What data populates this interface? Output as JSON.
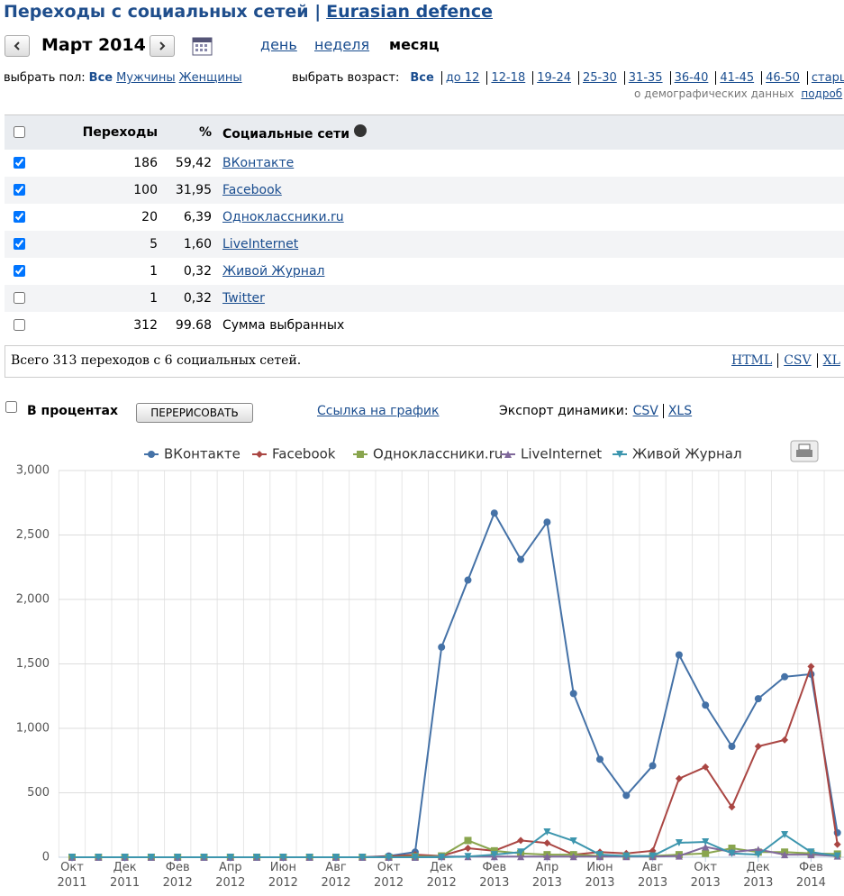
{
  "header": {
    "title": "Переходы с социальных сетей |",
    "site": "Eurasian defence"
  },
  "nav": {
    "period": "Март 2014",
    "modes": [
      "день",
      "неделя",
      "месяц"
    ],
    "active": 2
  },
  "filters": {
    "gender_label": "выбрать пол:",
    "genders": [
      "Все",
      "Мужчины",
      "Женщины"
    ],
    "age_label": "выбрать возраст:",
    "ages": [
      "Все",
      "до 12",
      "12-18",
      "19-24",
      "25-30",
      "31-35",
      "36-40",
      "41-45",
      "46-50",
      "старше"
    ],
    "demo_note": "о демографических данных",
    "demo_link": "подроб"
  },
  "table": {
    "headers": [
      "Переходы",
      "%",
      "Социальные сети"
    ],
    "rows": [
      {
        "checked": true,
        "visits": "186",
        "percent": "59,42",
        "name": "ВКонтакте",
        "link": true
      },
      {
        "checked": true,
        "visits": "100",
        "percent": "31,95",
        "name": "Facebook",
        "link": true
      },
      {
        "checked": true,
        "visits": "20",
        "percent": "6,39",
        "name": "Одноклассники.ru",
        "link": true
      },
      {
        "checked": true,
        "visits": "5",
        "percent": "1,60",
        "name": "LiveInternet",
        "link": true
      },
      {
        "checked": true,
        "visits": "1",
        "percent": "0,32",
        "name": "Живой Журнал",
        "link": true
      },
      {
        "checked": false,
        "visits": "1",
        "percent": "0,32",
        "name": "Twitter",
        "link": true
      },
      {
        "checked": false,
        "visits": "312",
        "percent": "99.68",
        "name": "Сумма выбранных",
        "link": false
      }
    ],
    "footer": "Всего 313 переходов с 6 социальных сетей.",
    "exports": [
      "HTML",
      "CSV",
      "XL"
    ]
  },
  "controls": {
    "percent_label": "В процентах",
    "redraw": "ПЕРЕРИСОВАТЬ",
    "chart_link": "Ссылка на график",
    "export_label": "Экспорт динамики:",
    "exports": [
      "CSV",
      "XLS"
    ]
  },
  "chart_data": {
    "type": "line",
    "categories": [
      "Окт 2011",
      null,
      "Дек 2011",
      null,
      "Фев 2012",
      null,
      "Апр 2012",
      null,
      "Июн 2012",
      null,
      "Авг 2012",
      null,
      "Окт 2012",
      null,
      "Дек 2012",
      null,
      "Фев 2013",
      null,
      "Апр 2013",
      null,
      "Июн 2013",
      null,
      "Авг 2013",
      null,
      "Окт 2013",
      null,
      "Дек 2013",
      null,
      "Фев 2014",
      null
    ],
    "ylim": [
      0,
      3000
    ],
    "yticks": [
      0,
      500,
      {
        "value": 1000,
        "label": "1,000"
      },
      {
        "value": 1500,
        "label": "1,500"
      },
      {
        "value": 2000,
        "label": "2,000"
      },
      {
        "value": 2500,
        "label": "2,500"
      },
      {
        "value": 3000,
        "label": "3,000"
      }
    ],
    "grid": true,
    "legend": "top",
    "series": [
      {
        "name": "ВКонтакте",
        "color": "#4572a7",
        "marker": "circle",
        "values": [
          0,
          0,
          0,
          0,
          0,
          0,
          0,
          0,
          0,
          0,
          0,
          0,
          10,
          40,
          1630,
          2150,
          2670,
          2310,
          2600,
          1270,
          760,
          480,
          710,
          1570,
          1180,
          860,
          1230,
          1400,
          1420,
          190
        ]
      },
      {
        "name": "Facebook",
        "color": "#aa4643",
        "marker": "diamond",
        "values": [
          0,
          0,
          0,
          0,
          0,
          0,
          0,
          0,
          0,
          0,
          0,
          0,
          5,
          20,
          10,
          70,
          50,
          130,
          110,
          20,
          40,
          30,
          50,
          610,
          700,
          390,
          860,
          910,
          1480,
          100
        ]
      },
      {
        "name": "Одноклассники.ru",
        "color": "#89a54e",
        "marker": "square",
        "values": [
          0,
          0,
          0,
          0,
          0,
          0,
          0,
          0,
          0,
          0,
          0,
          0,
          0,
          5,
          10,
          130,
          50,
          30,
          20,
          20,
          10,
          10,
          10,
          20,
          30,
          70,
          40,
          40,
          30,
          25
        ]
      },
      {
        "name": "LiveInternet",
        "color": "#80699b",
        "marker": "triangle",
        "values": [
          0,
          0,
          0,
          0,
          0,
          0,
          0,
          0,
          0,
          0,
          0,
          0,
          0,
          0,
          5,
          5,
          5,
          5,
          5,
          5,
          5,
          5,
          5,
          10,
          80,
          40,
          60,
          20,
          20,
          10
        ]
      },
      {
        "name": "Живой Журнал",
        "color": "#3d96ae",
        "marker": "triangle-down",
        "values": [
          0,
          0,
          0,
          0,
          0,
          0,
          0,
          0,
          0,
          0,
          0,
          0,
          0,
          0,
          0,
          5,
          20,
          40,
          196,
          126,
          20,
          10,
          10,
          112,
          119,
          30,
          20,
          175,
          40,
          10
        ]
      }
    ]
  }
}
